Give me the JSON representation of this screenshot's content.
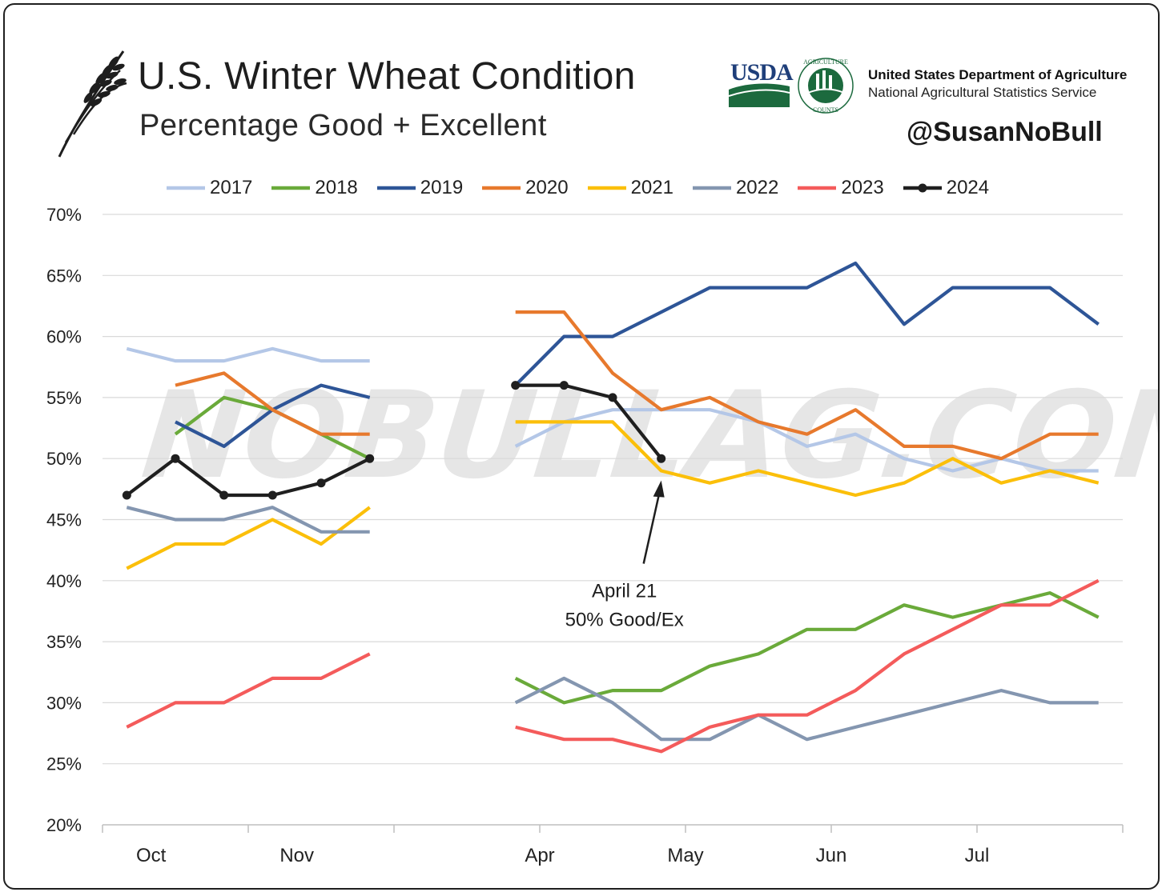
{
  "header": {
    "title": "U.S. Winter Wheat Condition",
    "subtitle": "Percentage Good + Excellent",
    "usda_mark": "USDA",
    "agency_name": "United States Department of Agriculture",
    "agency_sub": "National Agricultural Statistics Service",
    "seal_text_top": "AGRICULTURE",
    "seal_text_bottom": "COUNTS",
    "handle": "@SusanNoBull"
  },
  "watermark": "NOBULLAG.COM",
  "annotation": {
    "line1": "April 21",
    "line2": "50% Good/Ex"
  },
  "chart_data": {
    "type": "line",
    "title": "U.S. Winter Wheat Condition",
    "subtitle": "Percentage Good + Excellent",
    "ylim": [
      20,
      70
    ],
    "yticks": [
      "20%",
      "25%",
      "30%",
      "35%",
      "40%",
      "45%",
      "50%",
      "55%",
      "60%",
      "65%",
      "70%"
    ],
    "x_slots": 21,
    "month_labels": [
      {
        "label": "Oct",
        "slot": 1
      },
      {
        "label": "Nov",
        "slot": 4
      },
      {
        "label": "Apr",
        "slot": 9
      },
      {
        "label": "May",
        "slot": 12
      },
      {
        "label": "Jun",
        "slot": 15
      },
      {
        "label": "Jul",
        "slot": 18
      }
    ],
    "grid": true,
    "legend_position": "top",
    "series": [
      {
        "name": "2017",
        "color": "#b4c7e7",
        "marker": false,
        "values": [
          59,
          58,
          58,
          59,
          58,
          58,
          null,
          null,
          51,
          53,
          54,
          54,
          54,
          53,
          51,
          52,
          50,
          49,
          50,
          49,
          49
        ]
      },
      {
        "name": "2018",
        "color": "#6aaa3a",
        "marker": false,
        "values": [
          null,
          52,
          55,
          54,
          52,
          50,
          null,
          null,
          32,
          30,
          31,
          31,
          33,
          34,
          36,
          36,
          38,
          37,
          38,
          39,
          37
        ]
      },
      {
        "name": "2019",
        "color": "#2e5597",
        "marker": false,
        "values": [
          null,
          53,
          51,
          54,
          56,
          55,
          null,
          null,
          56,
          60,
          60,
          62,
          64,
          64,
          64,
          66,
          61,
          64,
          64,
          64,
          61
        ]
      },
      {
        "name": "2020",
        "color": "#e7792d",
        "marker": false,
        "values": [
          null,
          56,
          57,
          54,
          52,
          52,
          null,
          null,
          62,
          62,
          57,
          54,
          55,
          53,
          52,
          54,
          51,
          51,
          50,
          52,
          52
        ]
      },
      {
        "name": "2021",
        "color": "#fbbf0a",
        "marker": false,
        "values": [
          41,
          43,
          43,
          45,
          43,
          46,
          null,
          null,
          53,
          53,
          53,
          49,
          48,
          49,
          48,
          47,
          48,
          50,
          48,
          49,
          48
        ]
      },
      {
        "name": "2022",
        "color": "#8496b0",
        "marker": false,
        "values": [
          46,
          45,
          45,
          46,
          44,
          44,
          null,
          null,
          30,
          32,
          30,
          27,
          27,
          29,
          27,
          28,
          29,
          30,
          31,
          30,
          30
        ]
      },
      {
        "name": "2023",
        "color": "#f45b5b",
        "marker": false,
        "values": [
          28,
          30,
          30,
          32,
          32,
          34,
          null,
          null,
          28,
          27,
          27,
          26,
          28,
          29,
          29,
          31,
          34,
          36,
          38,
          38,
          40
        ]
      },
      {
        "name": "2024",
        "color": "#1f1f1f",
        "marker": true,
        "values": [
          47,
          50,
          47,
          47,
          48,
          50,
          null,
          null,
          56,
          56,
          55,
          50,
          null,
          null,
          null,
          null,
          null,
          null,
          null,
          null,
          null
        ]
      }
    ]
  }
}
